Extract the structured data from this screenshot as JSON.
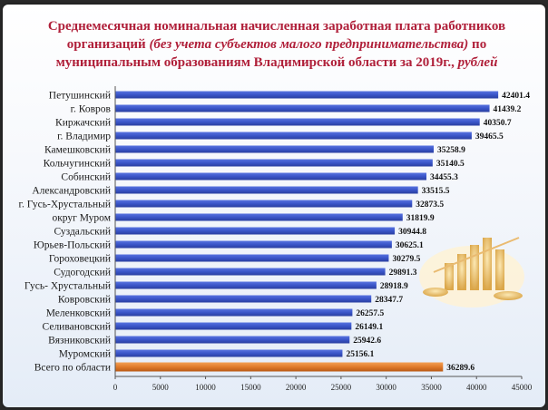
{
  "title": {
    "line1": "Среднемесячная номинальная начисленная  заработная плата работников",
    "line2_prefix": "организаций ",
    "line2_italic": "(без учета субъектов малого предпринимательства)",
    "line2_suffix": " по",
    "line3_prefix": "муниципальным образованиям Владимирской области за 2019г.,",
    "line3_italic": " рублей"
  },
  "colors": {
    "bar": "#3a55c8",
    "bar_total": "#e07a2a",
    "title": "#b0203a"
  },
  "decoration_icon": "gold-coins-chart-icon",
  "chart_data": {
    "type": "bar",
    "orientation": "horizontal",
    "categories": [
      "Петушинский",
      "г. Ковров",
      "Киржачский",
      "г. Владимир",
      "Камешковский",
      "Кольчугинский",
      "Собинский",
      "Александровский",
      "г. Гусь-Хрустальный",
      "округ Муром",
      "Суздальский",
      "Юрьев-Польский",
      "Гороховецкий",
      "Судогодский",
      "Гусь- Хрустальный",
      "Ковровский",
      "Меленковский",
      "Селивановский",
      "Вязниковский",
      "Муромский",
      "Всего по области"
    ],
    "values": [
      42401.4,
      41439.2,
      40350.7,
      39465.5,
      35258.9,
      35140.5,
      34455.3,
      33515.5,
      32873.5,
      31819.9,
      30944.8,
      30625.1,
      30279.5,
      29891.3,
      28918.9,
      28347.7,
      26257.5,
      26149.1,
      25942.6,
      25156.1,
      36289.6
    ],
    "value_labels": [
      "42401.4",
      "41439.2",
      "40350.7",
      "39465.5",
      "35258.9",
      "35140.5",
      "34455.3",
      "33515.5",
      "32873.5",
      "31819.9",
      "30944.8",
      "30625.1",
      "30279.5",
      "29891.3",
      "28918.9",
      "28347.7",
      "26257.5",
      "26149.1",
      "25942.6",
      "25156.1",
      "36289.6"
    ],
    "highlight_category": "Всего по области",
    "xlim": [
      0,
      45000
    ],
    "xticks": [
      0,
      5000,
      10000,
      15000,
      20000,
      25000,
      30000,
      35000,
      40000,
      45000
    ],
    "xtick_labels": [
      "0",
      "5000",
      "10000",
      "15000",
      "20000",
      "25000",
      "30000",
      "35000",
      "40000",
      "45000"
    ],
    "grid": false,
    "legend": "none"
  }
}
